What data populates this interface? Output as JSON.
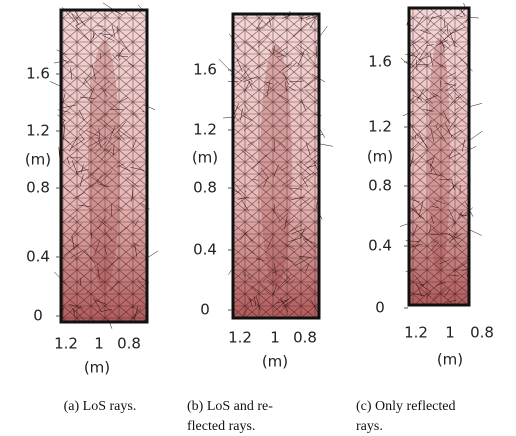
{
  "panels": [
    {
      "yticks": [
        "1.6",
        "1.2",
        "0.8",
        "0.4",
        "0"
      ],
      "ylabel": "(m)",
      "xticks": [
        "1.2",
        "1",
        "0.8"
      ],
      "xlabel": "(m)",
      "caption": [
        "(a) LoS rays."
      ]
    },
    {
      "yticks": [
        "1.6",
        "1.2",
        "0.8",
        "0.4",
        "0"
      ],
      "ylabel": "(m)",
      "xticks": [
        "1.2",
        "1",
        "0.8"
      ],
      "xlabel": "(m)",
      "caption": [
        "(b) LoS and re-",
        "flected rays."
      ]
    },
    {
      "yticks": [
        "1.6",
        "1.2",
        "0.8",
        "0.4",
        "0"
      ],
      "ylabel": "(m)",
      "xticks": [
        "1.2",
        "1",
        "0.8"
      ],
      "xlabel": "(m)",
      "caption": [
        "(c) Only reflected",
        "rays."
      ]
    }
  ]
}
